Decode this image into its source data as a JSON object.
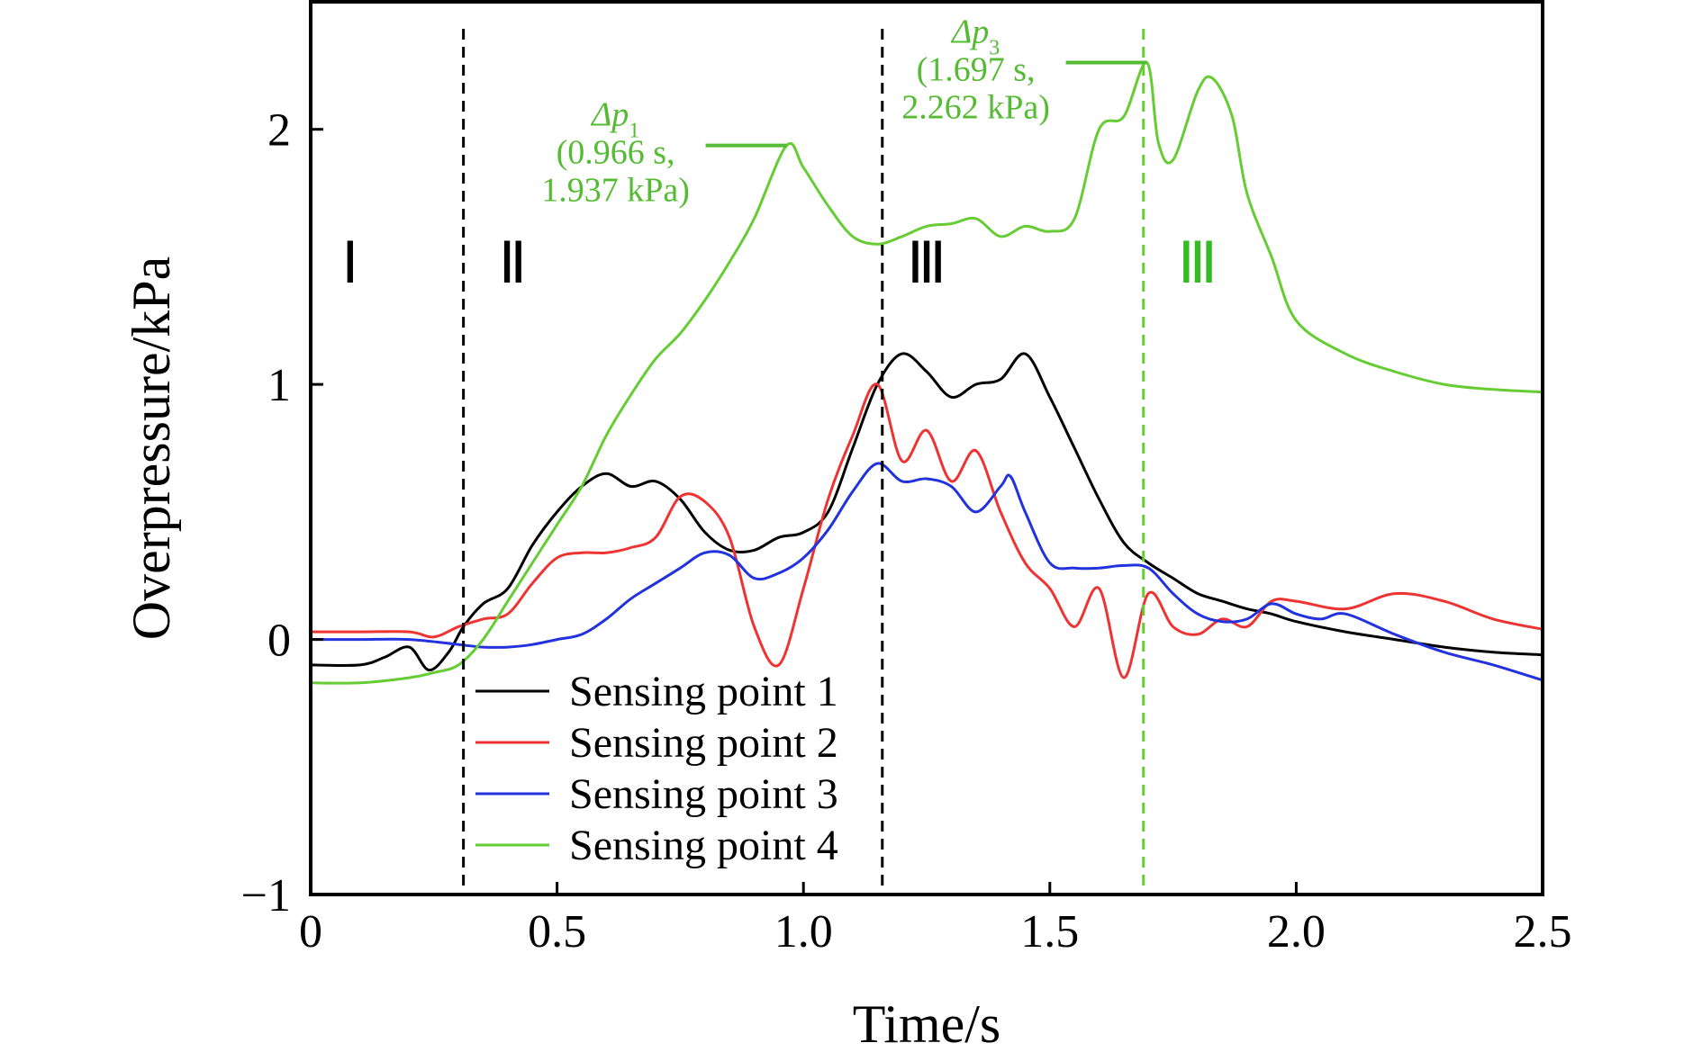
{
  "chart_data": {
    "type": "line",
    "title": "",
    "xlabel": "Time/s",
    "ylabel": "Overpressure/kPa",
    "xlim": [
      0,
      2.5
    ],
    "ylim": [
      -1,
      2.5
    ],
    "xticks": [
      0,
      0.5,
      1.0,
      1.5,
      2.0,
      2.5
    ],
    "xtick_labels": [
      "0",
      "0.5",
      "1.0",
      "1.5",
      "2.0",
      "2.5"
    ],
    "yticks": [
      -1,
      0,
      1,
      2
    ],
    "ytick_labels": [
      "−1",
      "0",
      "1",
      "2"
    ],
    "grid": false,
    "legend_position": "bottom-left",
    "series": [
      {
        "name": "Sensing point 1",
        "color": "#000000",
        "x": [
          0,
          0.1,
          0.15,
          0.2,
          0.24,
          0.28,
          0.31,
          0.35,
          0.4,
          0.45,
          0.5,
          0.55,
          0.6,
          0.65,
          0.7,
          0.75,
          0.8,
          0.85,
          0.9,
          0.95,
          1.0,
          1.05,
          1.1,
          1.15,
          1.2,
          1.25,
          1.3,
          1.35,
          1.4,
          1.45,
          1.5,
          1.55,
          1.6,
          1.65,
          1.7,
          1.75,
          1.8,
          1.85,
          1.9,
          1.95,
          2.0,
          2.1,
          2.2,
          2.3,
          2.4,
          2.5
        ],
        "y": [
          -0.1,
          -0.1,
          -0.07,
          -0.03,
          -0.12,
          -0.05,
          0.05,
          0.14,
          0.2,
          0.37,
          0.5,
          0.6,
          0.65,
          0.6,
          0.62,
          0.55,
          0.42,
          0.35,
          0.35,
          0.4,
          0.42,
          0.5,
          0.75,
          1.0,
          1.12,
          1.05,
          0.95,
          1.0,
          1.02,
          1.12,
          0.95,
          0.75,
          0.55,
          0.38,
          0.3,
          0.24,
          0.18,
          0.15,
          0.12,
          0.1,
          0.07,
          0.03,
          0.0,
          -0.03,
          -0.05,
          -0.06
        ]
      },
      {
        "name": "Sensing point 2",
        "color": "#ee3333",
        "x": [
          0,
          0.1,
          0.2,
          0.25,
          0.3,
          0.35,
          0.4,
          0.45,
          0.5,
          0.55,
          0.6,
          0.65,
          0.7,
          0.75,
          0.8,
          0.85,
          0.9,
          0.95,
          1.0,
          1.05,
          1.1,
          1.15,
          1.2,
          1.25,
          1.3,
          1.35,
          1.4,
          1.45,
          1.5,
          1.55,
          1.6,
          1.65,
          1.7,
          1.75,
          1.8,
          1.85,
          1.9,
          1.95,
          2.0,
          2.1,
          2.2,
          2.3,
          2.4,
          2.5
        ],
        "y": [
          0.03,
          0.03,
          0.03,
          0.01,
          0.05,
          0.08,
          0.1,
          0.22,
          0.32,
          0.34,
          0.34,
          0.36,
          0.4,
          0.56,
          0.54,
          0.4,
          0.05,
          -0.1,
          0.2,
          0.55,
          0.8,
          1.0,
          0.7,
          0.82,
          0.62,
          0.74,
          0.5,
          0.3,
          0.2,
          0.05,
          0.2,
          -0.15,
          0.18,
          0.05,
          0.02,
          0.08,
          0.05,
          0.15,
          0.15,
          0.12,
          0.18,
          0.15,
          0.08,
          0.04
        ]
      },
      {
        "name": "Sensing point 3",
        "color": "#2233dd",
        "x": [
          0,
          0.1,
          0.2,
          0.3,
          0.35,
          0.4,
          0.45,
          0.5,
          0.55,
          0.6,
          0.65,
          0.7,
          0.75,
          0.8,
          0.85,
          0.9,
          0.95,
          1.0,
          1.05,
          1.1,
          1.15,
          1.2,
          1.25,
          1.3,
          1.35,
          1.4,
          1.42,
          1.45,
          1.5,
          1.55,
          1.6,
          1.65,
          1.7,
          1.75,
          1.8,
          1.85,
          1.9,
          1.95,
          2.0,
          2.05,
          2.1,
          2.2,
          2.3,
          2.4,
          2.5
        ],
        "y": [
          0.0,
          0.0,
          0.0,
          -0.02,
          -0.03,
          -0.03,
          -0.02,
          0.0,
          0.02,
          0.08,
          0.16,
          0.22,
          0.28,
          0.34,
          0.33,
          0.24,
          0.26,
          0.32,
          0.43,
          0.58,
          0.69,
          0.62,
          0.63,
          0.6,
          0.5,
          0.6,
          0.64,
          0.5,
          0.3,
          0.28,
          0.28,
          0.29,
          0.28,
          0.18,
          0.1,
          0.07,
          0.08,
          0.14,
          0.1,
          0.08,
          0.1,
          0.02,
          -0.05,
          -0.1,
          -0.16
        ]
      },
      {
        "name": "Sensing point 4",
        "color": "#66cc33",
        "x": [
          0,
          0.1,
          0.2,
          0.25,
          0.3,
          0.35,
          0.4,
          0.45,
          0.5,
          0.55,
          0.6,
          0.65,
          0.7,
          0.75,
          0.8,
          0.85,
          0.9,
          0.966,
          1.0,
          1.05,
          1.1,
          1.15,
          1.2,
          1.25,
          1.3,
          1.35,
          1.4,
          1.45,
          1.5,
          1.55,
          1.6,
          1.65,
          1.697,
          1.72,
          1.75,
          1.8,
          1.83,
          1.87,
          1.9,
          1.95,
          2.0,
          2.1,
          2.2,
          2.3,
          2.4,
          2.5
        ],
        "y": [
          -0.17,
          -0.17,
          -0.15,
          -0.13,
          -0.1,
          0.0,
          0.15,
          0.3,
          0.45,
          0.6,
          0.8,
          0.96,
          1.1,
          1.2,
          1.33,
          1.48,
          1.65,
          1.937,
          1.85,
          1.7,
          1.58,
          1.55,
          1.58,
          1.62,
          1.63,
          1.65,
          1.58,
          1.62,
          1.6,
          1.65,
          2.0,
          2.05,
          2.262,
          1.95,
          1.88,
          2.15,
          2.2,
          2.05,
          1.75,
          1.5,
          1.25,
          1.12,
          1.05,
          1.0,
          0.98,
          0.97
        ]
      }
    ],
    "vertical_lines": [
      {
        "x": 0.31,
        "color": "#000000",
        "style": "dashed"
      },
      {
        "x": 1.16,
        "color": "#000000",
        "style": "dashed"
      },
      {
        "x": 1.69,
        "color": "#66cc33",
        "style": "dashed"
      }
    ],
    "regions": [
      {
        "label": "Ⅰ",
        "x": 0.08,
        "y": 1.4,
        "color": "#000000"
      },
      {
        "label": "Ⅱ",
        "x": 0.41,
        "y": 1.4,
        "color": "#000000"
      },
      {
        "label": "Ⅲ",
        "x": 1.25,
        "y": 1.4,
        "color": "#000000"
      },
      {
        "label": "Ⅲ",
        "x": 1.8,
        "y": 1.4,
        "color": "#33bb22"
      }
    ],
    "annotations": [
      {
        "symbol": "Δp",
        "subscript": "1",
        "line1": "(0.966 s,",
        "line2": "1.937 kPa)",
        "x": 0.966,
        "y": 1.937,
        "color": "#55bb33"
      },
      {
        "symbol": "Δp",
        "subscript": "3",
        "line1": "(1.697 s,",
        "line2": "2.262 kPa)",
        "x": 1.697,
        "y": 2.262,
        "color": "#55bb33"
      }
    ]
  }
}
